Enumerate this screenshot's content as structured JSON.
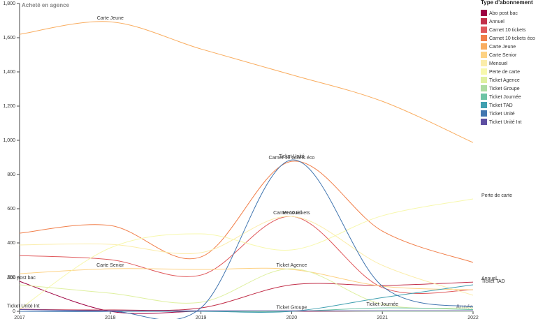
{
  "chart_data": {
    "type": "line",
    "y_label": "Acheté en agence",
    "x_label": "Année",
    "legend_title": "Type d'abonnement",
    "x": [
      2017,
      2018,
      2019,
      2020,
      2021,
      2022
    ],
    "xlim": [
      2017,
      2022
    ],
    "xticks": [
      2017,
      2018,
      2019,
      2020,
      2021,
      2022
    ],
    "ylim": [
      0,
      1800
    ],
    "yticks": [
      0,
      200,
      400,
      600,
      800,
      {
        "value": 1000,
        "label": "1,000"
      },
      {
        "value": 1200,
        "label": "1,200"
      },
      {
        "value": 1400,
        "label": "1,400"
      },
      {
        "value": 1600,
        "label": "1,600"
      },
      {
        "value": 1800,
        "label": "1,800"
      }
    ],
    "series": [
      {
        "name": "Abo post bac",
        "color": "#9e0142",
        "values": [
          175,
          0,
          0,
          0,
          0,
          0
        ]
      },
      {
        "name": "Annuel",
        "color": "#c2304a",
        "values": [
          12,
          8,
          20,
          155,
          151,
          171
        ]
      },
      {
        "name": "Carnet 10 tickets",
        "color": "#e0585b",
        "values": [
          326,
          302,
          212,
          555,
          139,
          126
        ]
      },
      {
        "name": "Carnet 10 tickets éco",
        "color": "#f17f4a",
        "values": [
          457,
          502,
          318,
          877,
          469,
          286
        ]
      },
      {
        "name": "Carte Jeune",
        "color": "#f9ad60",
        "values": [
          1620,
          1693,
          1534,
          1383,
          1228,
          987
        ]
      },
      {
        "name": "Carte Senior",
        "color": "#fdd284",
        "values": [
          220,
          249,
          245,
          245,
          147,
          126
        ]
      },
      {
        "name": "Mensuel",
        "color": "#fbedaa",
        "values": [
          388,
          392,
          343,
          555,
          269,
          94
        ]
      },
      {
        "name": "Perte de carte",
        "color": "#f7f8ad",
        "values": [
          12,
          371,
          453,
          359,
          559,
          657
        ]
      },
      {
        "name": "Ticket Agence",
        "color": "#dff0a0",
        "values": [
          155,
          106,
          53,
          249,
          41,
          20
        ]
      },
      {
        "name": "Ticket Groupe",
        "color": "#addca2",
        "values": [
          0,
          0,
          0,
          2,
          0,
          0
        ]
      },
      {
        "name": "Ticket Journée",
        "color": "#6cc3a5",
        "values": [
          0,
          0,
          0,
          0,
          20,
          10
        ]
      },
      {
        "name": "Ticket TAD",
        "color": "#41a0b0",
        "values": [
          0,
          0,
          0,
          0,
          80,
          155
        ]
      },
      {
        "name": "Ticket Unité",
        "color": "#4276b0",
        "values": [
          0,
          0,
          20,
          885,
          147,
          25
        ]
      },
      {
        "name": "Ticket Unité Int",
        "color": "#5e4fa2",
        "values": [
          10,
          3,
          3,
          3,
          3,
          3
        ]
      }
    ]
  }
}
